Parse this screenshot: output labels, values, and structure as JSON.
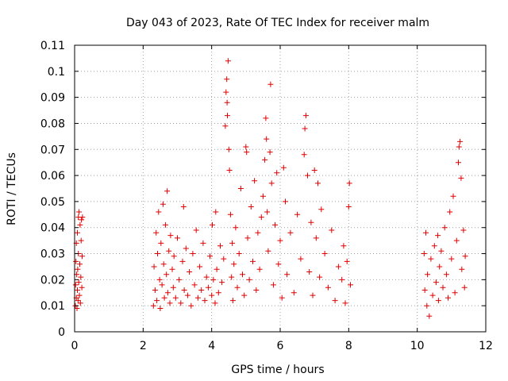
{
  "chart_data": {
    "type": "scatter",
    "title": "Day 043 of 2023, Rate Of TEC Index for receiver malm",
    "xlabel": "GPS time / hours",
    "ylabel": "ROTI / TECUs",
    "xlim": [
      0,
      12
    ],
    "ylim": [
      0,
      0.11
    ],
    "x_ticks": [
      0,
      2,
      4,
      6,
      8,
      10,
      12
    ],
    "x_tick_labels": [
      "0",
      "2",
      "4",
      "6",
      "8",
      "10",
      "12"
    ],
    "y_ticks": [
      0,
      0.01,
      0.02,
      0.03,
      0.04,
      0.05,
      0.06,
      0.07,
      0.08,
      0.09,
      0.1,
      0.11
    ],
    "y_tick_labels": [
      "0",
      "0.01",
      "0.02",
      "0.03",
      "0.04",
      "0.05",
      "0.06",
      "0.07",
      "0.08",
      "0.09",
      "0.1",
      "0.11"
    ],
    "grid": true,
    "marker": "plus",
    "series_color": "#e00000",
    "series": [
      {
        "name": "ROTI",
        "points": [
          [
            0.02,
            0.01
          ],
          [
            0.03,
            0.018
          ],
          [
            0.04,
            0.027
          ],
          [
            0.05,
            0.013
          ],
          [
            0.05,
            0.034
          ],
          [
            0.06,
            0.022
          ],
          [
            0.07,
            0.009
          ],
          [
            0.08,
            0.016
          ],
          [
            0.08,
            0.038
          ],
          [
            0.09,
            0.024
          ],
          [
            0.1,
            0.012
          ],
          [
            0.11,
            0.03
          ],
          [
            0.11,
            0.044
          ],
          [
            0.12,
            0.019
          ],
          [
            0.13,
            0.046
          ],
          [
            0.14,
            0.014
          ],
          [
            0.15,
            0.026
          ],
          [
            0.16,
            0.041
          ],
          [
            0.17,
            0.011
          ],
          [
            0.18,
            0.021
          ],
          [
            0.19,
            0.035
          ],
          [
            0.2,
            0.043
          ],
          [
            0.21,
            0.017
          ],
          [
            0.22,
            0.029
          ],
          [
            0.23,
            0.044
          ],
          [
            2.3,
            0.01
          ],
          [
            2.32,
            0.025
          ],
          [
            2.35,
            0.016
          ],
          [
            2.38,
            0.038
          ],
          [
            2.4,
            0.012
          ],
          [
            2.42,
            0.03
          ],
          [
            2.45,
            0.046
          ],
          [
            2.48,
            0.02
          ],
          [
            2.5,
            0.009
          ],
          [
            2.52,
            0.034
          ],
          [
            2.55,
            0.018
          ],
          [
            2.58,
            0.049
          ],
          [
            2.6,
            0.026
          ],
          [
            2.62,
            0.013
          ],
          [
            2.65,
            0.041
          ],
          [
            2.68,
            0.022
          ],
          [
            2.7,
            0.054
          ],
          [
            2.72,
            0.015
          ],
          [
            2.75,
            0.031
          ],
          [
            2.78,
            0.011
          ],
          [
            2.8,
            0.037
          ],
          [
            2.85,
            0.024
          ],
          [
            2.88,
            0.017
          ],
          [
            2.9,
            0.029
          ],
          [
            2.95,
            0.013
          ],
          [
            3.0,
            0.036
          ],
          [
            3.05,
            0.02
          ],
          [
            3.1,
            0.011
          ],
          [
            3.15,
            0.027
          ],
          [
            3.18,
            0.048
          ],
          [
            3.2,
            0.016
          ],
          [
            3.25,
            0.032
          ],
          [
            3.3,
            0.014
          ],
          [
            3.35,
            0.023
          ],
          [
            3.4,
            0.01
          ],
          [
            3.45,
            0.03
          ],
          [
            3.5,
            0.018
          ],
          [
            3.55,
            0.039
          ],
          [
            3.6,
            0.013
          ],
          [
            3.65,
            0.025
          ],
          [
            3.7,
            0.016
          ],
          [
            3.75,
            0.034
          ],
          [
            3.8,
            0.012
          ],
          [
            3.85,
            0.021
          ],
          [
            3.9,
            0.017
          ],
          [
            3.95,
            0.029
          ],
          [
            4.0,
            0.014
          ],
          [
            4.02,
            0.041
          ],
          [
            4.05,
            0.02
          ],
          [
            4.1,
            0.011
          ],
          [
            4.12,
            0.046
          ],
          [
            4.15,
            0.024
          ],
          [
            4.2,
            0.015
          ],
          [
            4.25,
            0.033
          ],
          [
            4.3,
            0.019
          ],
          [
            4.35,
            0.028
          ],
          [
            4.4,
            0.079
          ],
          [
            4.42,
            0.092
          ],
          [
            4.44,
            0.097
          ],
          [
            4.45,
            0.088
          ],
          [
            4.46,
            0.083
          ],
          [
            4.48,
            0.104
          ],
          [
            4.5,
            0.07
          ],
          [
            4.52,
            0.062
          ],
          [
            4.55,
            0.045
          ],
          [
            4.58,
            0.021
          ],
          [
            4.6,
            0.034
          ],
          [
            4.62,
            0.012
          ],
          [
            4.65,
            0.026
          ],
          [
            4.7,
            0.04
          ],
          [
            4.75,
            0.017
          ],
          [
            4.8,
            0.03
          ],
          [
            4.85,
            0.055
          ],
          [
            4.9,
            0.022
          ],
          [
            4.95,
            0.014
          ],
          [
            5.0,
            0.071
          ],
          [
            5.02,
            0.069
          ],
          [
            5.05,
            0.036
          ],
          [
            5.1,
            0.02
          ],
          [
            5.15,
            0.048
          ],
          [
            5.2,
            0.027
          ],
          [
            5.25,
            0.058
          ],
          [
            5.3,
            0.016
          ],
          [
            5.35,
            0.038
          ],
          [
            5.4,
            0.024
          ],
          [
            5.45,
            0.044
          ],
          [
            5.5,
            0.052
          ],
          [
            5.55,
            0.066
          ],
          [
            5.58,
            0.082
          ],
          [
            5.6,
            0.074
          ],
          [
            5.62,
            0.046
          ],
          [
            5.65,
            0.031
          ],
          [
            5.7,
            0.069
          ],
          [
            5.72,
            0.095
          ],
          [
            5.75,
            0.057
          ],
          [
            5.8,
            0.018
          ],
          [
            5.85,
            0.041
          ],
          [
            5.9,
            0.061
          ],
          [
            5.95,
            0.026
          ],
          [
            6.0,
            0.035
          ],
          [
            6.05,
            0.013
          ],
          [
            6.1,
            0.063
          ],
          [
            6.15,
            0.05
          ],
          [
            6.2,
            0.022
          ],
          [
            6.3,
            0.038
          ],
          [
            6.4,
            0.015
          ],
          [
            6.5,
            0.045
          ],
          [
            6.6,
            0.028
          ],
          [
            6.7,
            0.068
          ],
          [
            6.72,
            0.078
          ],
          [
            6.75,
            0.083
          ],
          [
            6.8,
            0.06
          ],
          [
            6.85,
            0.023
          ],
          [
            6.9,
            0.042
          ],
          [
            6.95,
            0.014
          ],
          [
            7.0,
            0.062
          ],
          [
            7.05,
            0.036
          ],
          [
            7.1,
            0.057
          ],
          [
            7.15,
            0.021
          ],
          [
            7.2,
            0.047
          ],
          [
            7.3,
            0.03
          ],
          [
            7.4,
            0.017
          ],
          [
            7.5,
            0.039
          ],
          [
            7.6,
            0.012
          ],
          [
            7.7,
            0.025
          ],
          [
            7.8,
            0.02
          ],
          [
            7.85,
            0.033
          ],
          [
            7.9,
            0.011
          ],
          [
            7.95,
            0.027
          ],
          [
            8.0,
            0.048
          ],
          [
            8.02,
            0.057
          ],
          [
            8.05,
            0.018
          ],
          [
            10.2,
            0.03
          ],
          [
            10.22,
            0.016
          ],
          [
            10.25,
            0.038
          ],
          [
            10.28,
            0.01
          ],
          [
            10.3,
            0.022
          ],
          [
            10.35,
            0.006
          ],
          [
            10.4,
            0.028
          ],
          [
            10.45,
            0.014
          ],
          [
            10.5,
            0.033
          ],
          [
            10.55,
            0.019
          ],
          [
            10.6,
            0.037
          ],
          [
            10.62,
            0.012
          ],
          [
            10.65,
            0.025
          ],
          [
            10.7,
            0.031
          ],
          [
            10.75,
            0.017
          ],
          [
            10.8,
            0.04
          ],
          [
            10.85,
            0.022
          ],
          [
            10.9,
            0.013
          ],
          [
            10.95,
            0.046
          ],
          [
            11.0,
            0.028
          ],
          [
            11.05,
            0.052
          ],
          [
            11.1,
            0.015
          ],
          [
            11.15,
            0.035
          ],
          [
            11.2,
            0.065
          ],
          [
            11.22,
            0.071
          ],
          [
            11.25,
            0.073
          ],
          [
            11.28,
            0.059
          ],
          [
            11.3,
            0.024
          ],
          [
            11.35,
            0.039
          ],
          [
            11.38,
            0.017
          ],
          [
            11.4,
            0.029
          ]
        ]
      }
    ]
  }
}
